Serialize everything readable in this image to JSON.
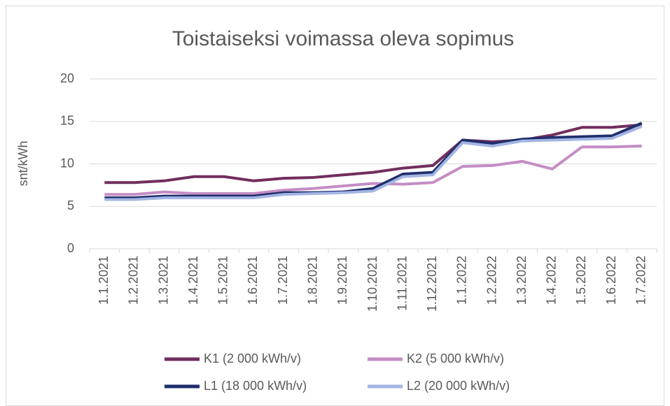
{
  "chart_data": {
    "type": "line",
    "title": "Toistaiseksi voimassa oleva sopimus",
    "y_label": "snt/kWh",
    "categories": [
      "1.1.2021",
      "1.2.2021",
      "1.3.2021",
      "1.4.2021",
      "1.5.2021",
      "1.6.2021",
      "1.7.2021",
      "1.8.2021",
      "1.9.2021",
      "1.10.2021",
      "1.11.2021",
      "1.12.2021",
      "1.1.2022",
      "1.2.2022",
      "1.3.2022",
      "1.4.2022",
      "1.5.2022",
      "1.6.2022",
      "1.7.2022"
    ],
    "series": [
      {
        "name": "K1 (2 000 kWh/v)",
        "color": "#722d5e",
        "values": [
          7.8,
          7.8,
          8.0,
          8.5,
          8.5,
          8.0,
          8.3,
          8.4,
          8.7,
          9.0,
          9.5,
          9.8,
          12.8,
          12.6,
          12.8,
          13.4,
          14.3,
          14.3,
          14.6
        ]
      },
      {
        "name": "K2 (5 000 kWh/v)",
        "color": "#c48dc4",
        "values": [
          6.4,
          6.4,
          6.7,
          6.5,
          6.5,
          6.5,
          6.9,
          7.1,
          7.4,
          7.7,
          7.6,
          7.8,
          9.7,
          9.8,
          10.3,
          9.4,
          12.0,
          12.0,
          12.1
        ]
      },
      {
        "name": "L1 (18 000 kWh/v)",
        "color": "#1f2e6b",
        "values": [
          6.0,
          6.0,
          6.2,
          6.2,
          6.2,
          6.2,
          6.6,
          6.6,
          6.7,
          7.1,
          8.8,
          9.0,
          12.8,
          12.4,
          12.9,
          13.1,
          13.2,
          13.3,
          14.8
        ]
      },
      {
        "name": "L2 (20 000 kWh/v)",
        "color": "#a3b5e3",
        "values": [
          5.8,
          5.8,
          6.0,
          6.0,
          6.0,
          6.0,
          6.4,
          6.5,
          6.6,
          6.8,
          8.5,
          8.7,
          12.5,
          12.1,
          12.7,
          12.8,
          12.9,
          13.0,
          14.4
        ]
      }
    ],
    "ylim": [
      0,
      20
    ],
    "yticks": [
      0,
      5,
      10,
      15,
      20
    ],
    "grid": true
  }
}
